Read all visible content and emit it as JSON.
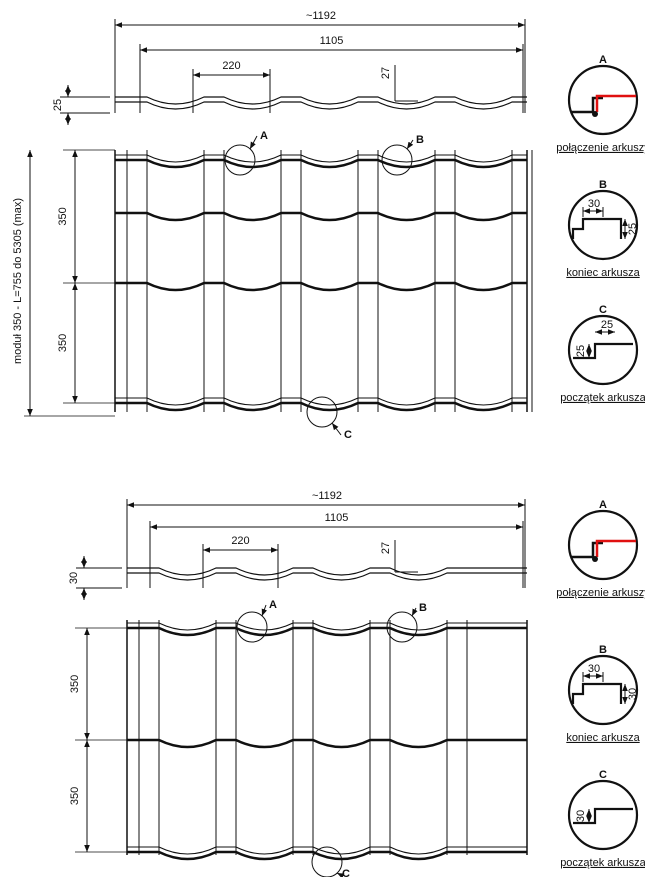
{
  "drawings": [
    {
      "overall_width": "~1192",
      "module_width": "1105",
      "pitch": "220",
      "step_height": "27",
      "profile_height": "25",
      "callouts": [
        "A",
        "B",
        "C"
      ],
      "module_lengths": [
        "350",
        "350"
      ],
      "length_label": "moduł 350 - L=755 do 5305 (max)"
    },
    {
      "overall_width": "~1192",
      "module_width": "1105",
      "pitch": "220",
      "step_height": "27",
      "profile_height": "30",
      "callouts": [
        "A",
        "B",
        "C"
      ],
      "module_lengths": [
        "350",
        "350"
      ]
    }
  ],
  "details": [
    [
      {
        "letter": "A",
        "caption": "połączenie arkuszy"
      },
      {
        "letter": "B",
        "dims": [
          "30",
          "25"
        ],
        "caption": "koniec arkusza"
      },
      {
        "letter": "C",
        "dims": [
          "25",
          "25"
        ],
        "caption": "początek arkusza"
      }
    ],
    [
      {
        "letter": "A",
        "caption": "połączenie arkuszy"
      },
      {
        "letter": "B",
        "dims": [
          "30",
          "30"
        ],
        "caption": "koniec arkusza"
      },
      {
        "letter": "C",
        "dims": [
          "30"
        ],
        "caption": "początek arkusza"
      }
    ]
  ]
}
